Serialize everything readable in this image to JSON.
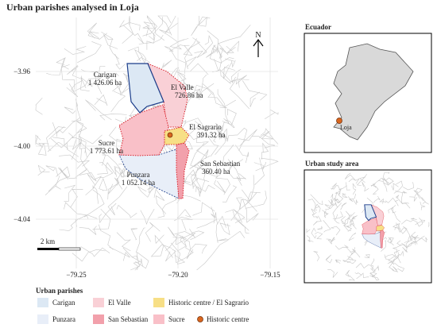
{
  "title": "Urban parishes analysed in Loja",
  "north": "N",
  "scale_bar": "2 km",
  "axes": {
    "y_ticks": [
      "−3.96",
      "−4.00",
      "−4.04"
    ],
    "x_ticks": [
      "−79.25",
      "−79.20",
      "−79.15"
    ]
  },
  "parishes": [
    {
      "name": "Carigan",
      "area": "1 426.06 ha"
    },
    {
      "name": "El Valle",
      "area": "726.86 ha"
    },
    {
      "name": "El Sagrario",
      "area": "391.32 ha"
    },
    {
      "name": "Sucre",
      "area": "1 773.61 ha"
    },
    {
      "name": "San Sebastian",
      "area": "360.40 ha"
    },
    {
      "name": "Punzara",
      "area": "1 052.14 ha"
    }
  ],
  "insets": {
    "ecuador": {
      "title": "Ecuador",
      "city": "Loja"
    },
    "study_area": {
      "title": "Urban study area"
    }
  },
  "legend": {
    "title": "Urban parishes",
    "items": [
      "Carigan",
      "El Valle",
      "Historic centre / El Sagrario",
      "Punzara",
      "San Sebastian",
      "Sucre",
      "Historic centre"
    ]
  }
}
